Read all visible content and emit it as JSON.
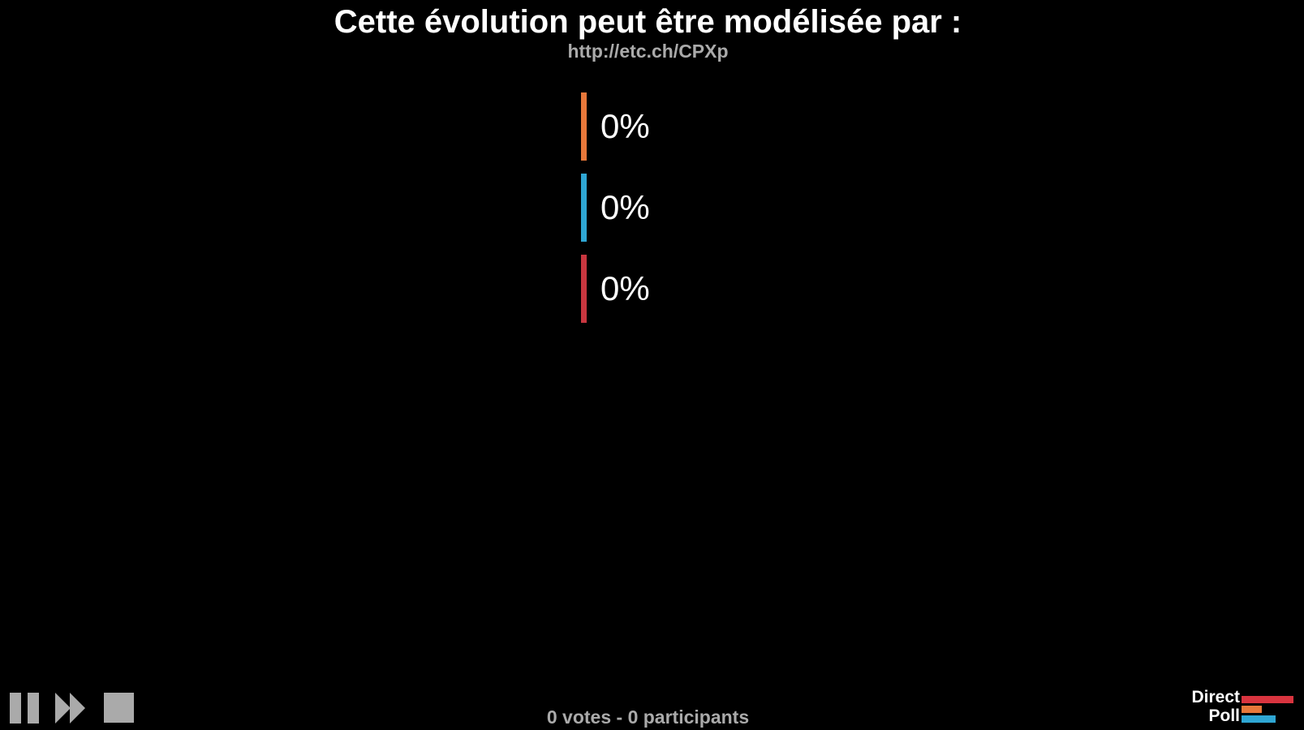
{
  "poll": {
    "title": "Cette évolution peut être modélisée par :",
    "url": "http://etc.ch/CPXp",
    "options": [
      {
        "percent_label": "0%",
        "percent": 0,
        "color": "#e8783a"
      },
      {
        "percent_label": "0%",
        "percent": 0,
        "color": "#2fa6d3"
      },
      {
        "percent_label": "0%",
        "percent": 0,
        "color": "#c8363f"
      }
    ]
  },
  "footer": {
    "stats": "0 votes - 0 participants"
  },
  "controls": {
    "pause": "pause-icon",
    "next": "fast-forward-icon",
    "stop": "stop-icon"
  },
  "logo": {
    "line1": "Direct",
    "line2": "Poll",
    "colors": [
      "#d9343f",
      "#e8783a",
      "#2fa6d3"
    ]
  }
}
